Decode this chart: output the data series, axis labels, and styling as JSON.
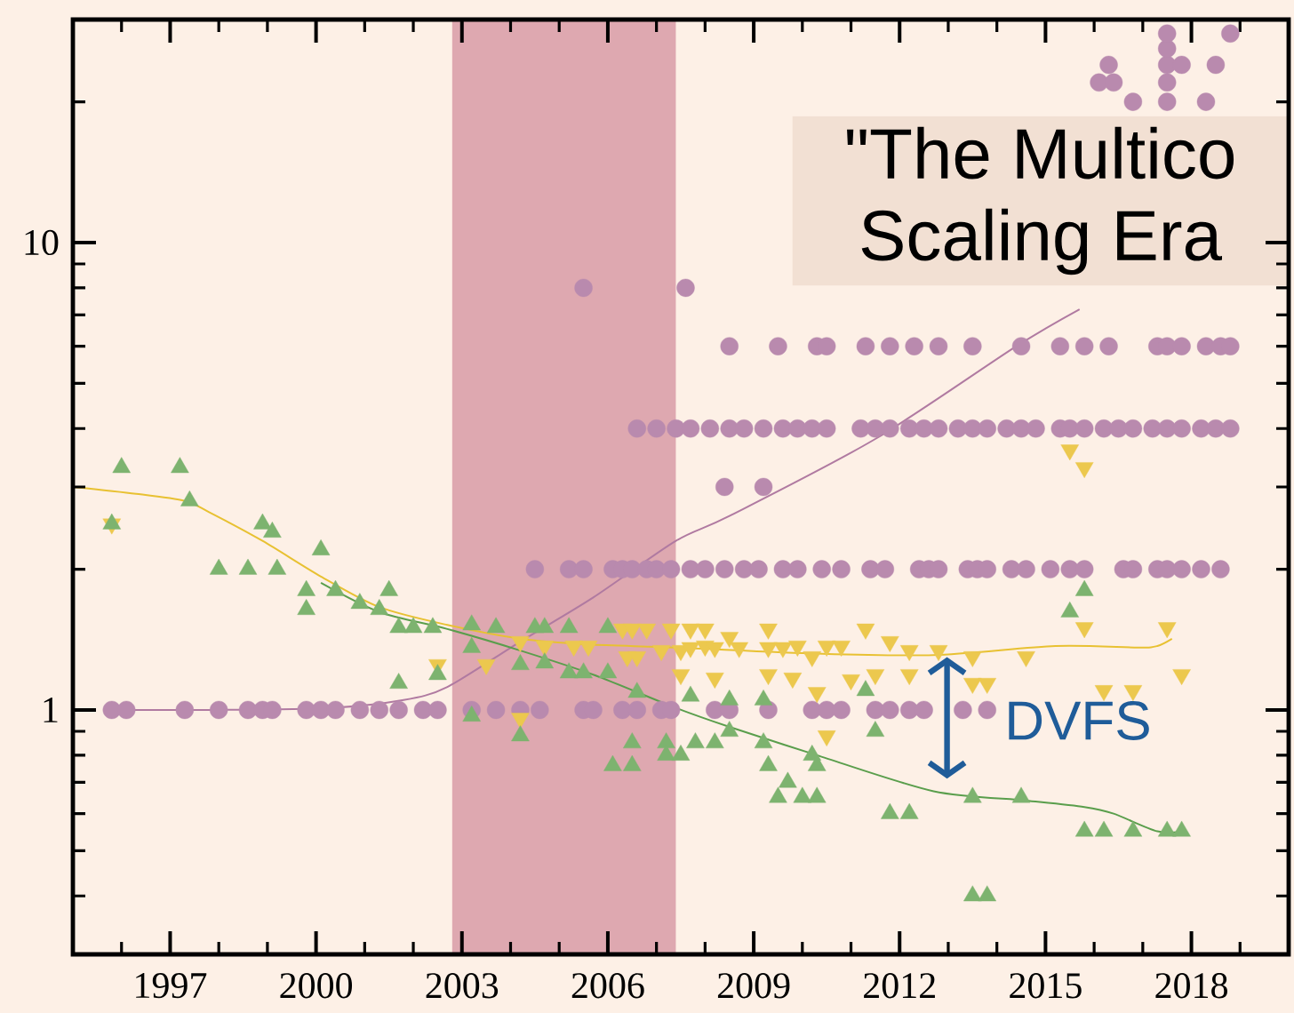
{
  "chart_data": {
    "type": "scatter",
    "log": "y",
    "xlim": [
      1995,
      2020
    ],
    "ylim": [
      0.3,
      30
    ],
    "xticks": [
      {
        "value": 1996,
        "label": null
      },
      1997,
      {
        "value": 1998,
        "label": null
      },
      {
        "value": 1999,
        "label": null
      },
      2000,
      {
        "value": 2001,
        "label": null
      },
      {
        "value": 2002,
        "label": null
      },
      2003,
      {
        "value": 2004,
        "label": null
      },
      {
        "value": 2005,
        "label": null
      },
      2006,
      {
        "value": 2007,
        "label": null
      },
      {
        "value": 2008,
        "label": null
      },
      2009,
      {
        "value": 2010,
        "label": null
      },
      {
        "value": 2011,
        "label": null
      },
      2012,
      {
        "value": 2013,
        "label": null
      },
      {
        "value": 2014,
        "label": null
      },
      2015,
      {
        "value": 2016,
        "label": null
      },
      {
        "value": 2017,
        "label": null
      },
      2018,
      {
        "value": 2019,
        "label": null
      }
    ],
    "yticks": [
      {
        "value": 0.4,
        "label": null
      },
      {
        "value": 0.5,
        "label": null
      },
      {
        "value": 0.6,
        "label": null
      },
      {
        "value": 0.7,
        "label": null
      },
      {
        "value": 0.8,
        "label": null
      },
      {
        "value": 0.9,
        "label": null
      },
      1,
      {
        "value": 2,
        "label": null
      },
      {
        "value": 3,
        "label": null
      },
      {
        "value": 4,
        "label": null
      },
      {
        "value": 5,
        "label": null
      },
      {
        "value": 6,
        "label": null
      },
      {
        "value": 7,
        "label": null
      },
      {
        "value": 8,
        "label": null
      },
      {
        "value": 9,
        "label": null
      },
      10,
      {
        "value": 20,
        "label": null
      }
    ],
    "bands": [
      {
        "axis": "x",
        "from": 2002.8,
        "to": 2007.4,
        "color": "#dea8b0"
      }
    ],
    "annotations": [
      "\"The Multico",
      "Scaling Era",
      "DVFS"
    ],
    "series": [
      {
        "marker": "circle",
        "color": "#b98aae",
        "x": [
          1995.8,
          1996.1,
          1997.3,
          1998.0,
          1998.6,
          1998.9,
          1999.1,
          1999.8,
          2000.1,
          2000.4,
          2000.9,
          2001.3,
          2001.7,
          2002.2,
          2002.5,
          2003.2,
          2003.7,
          2004.2,
          2004.6,
          2005.5,
          2005.7,
          2006.3,
          2006.6,
          2007.1,
          2007.3,
          2008.2,
          2008.5,
          2009.3,
          2010.2,
          2010.5,
          2010.8,
          2011.5,
          2011.8,
          2012.2,
          2012.5,
          2013.3,
          2013.8,
          2004.5,
          2005.2,
          2005.5,
          2006.1,
          2006.3,
          2006.5,
          2006.8,
          2007.0,
          2007.3,
          2007.7,
          2008.0,
          2008.4,
          2008.8,
          2009.1,
          2009.6,
          2009.9,
          2010.4,
          2010.8,
          2011.4,
          2011.7,
          2012.4,
          2012.6,
          2012.8,
          2013.4,
          2013.6,
          2013.8,
          2014.3,
          2014.6,
          2015.1,
          2015.5,
          2015.8,
          2016.6,
          2016.8,
          2017.3,
          2017.5,
          2017.8,
          2018.2,
          2018.6,
          2008.4,
          2009.2,
          2006.6,
          2007.0,
          2007.4,
          2007.7,
          2008.1,
          2008.5,
          2008.8,
          2009.2,
          2009.6,
          2009.9,
          2010.2,
          2010.5,
          2011.2,
          2011.5,
          2011.8,
          2012.2,
          2012.5,
          2012.8,
          2013.2,
          2013.5,
          2013.8,
          2014.2,
          2014.5,
          2014.8,
          2015.3,
          2015.5,
          2015.8,
          2016.2,
          2016.5,
          2016.8,
          2017.2,
          2017.5,
          2017.8,
          2018.2,
          2018.5,
          2018.8,
          2008.5,
          2009.5,
          2010.3,
          2010.5,
          2011.3,
          2011.8,
          2012.3,
          2012.8,
          2013.5,
          2014.5,
          2015.3,
          2015.8,
          2016.3,
          2017.3,
          2017.5,
          2017.8,
          2018.3,
          2018.6,
          2018.8,
          2005.5,
          2007.6,
          2016.8,
          2017.5,
          2018.3,
          2016.1,
          2016.4,
          2017.5,
          2016.3,
          2017.5,
          2017.8,
          2018.5,
          2017.5,
          2017.5,
          2018.8
        ],
        "values": [
          1,
          1,
          1,
          1,
          1,
          1,
          1,
          1,
          1,
          1,
          1,
          1,
          1,
          1,
          1,
          1,
          1,
          1,
          1,
          1,
          1,
          1,
          1,
          1,
          1,
          1,
          1,
          1,
          1,
          1,
          1,
          1,
          1,
          1,
          1,
          1,
          1,
          2,
          2,
          2,
          2,
          2,
          2,
          2,
          2,
          2,
          2,
          2,
          2,
          2,
          2,
          2,
          2,
          2,
          2,
          2,
          2,
          2,
          2,
          2,
          2,
          2,
          2,
          2,
          2,
          2,
          2,
          2,
          2,
          2,
          2,
          2,
          2,
          2,
          2,
          3,
          3,
          4,
          4,
          4,
          4,
          4,
          4,
          4,
          4,
          4,
          4,
          4,
          4,
          4,
          4,
          4,
          4,
          4,
          4,
          4,
          4,
          4,
          4,
          4,
          4,
          4,
          4,
          4,
          4,
          4,
          4,
          4,
          4,
          4,
          4,
          4,
          4,
          6,
          6,
          6,
          6,
          6,
          6,
          6,
          6,
          6,
          6,
          6,
          6,
          6,
          6,
          6,
          6,
          6,
          6,
          6,
          8,
          8,
          20,
          20,
          20,
          22,
          22,
          22,
          24,
          24,
          24,
          24,
          26,
          28,
          28
        ]
      },
      {
        "marker": "triangle-down",
        "color": "#ecc84e",
        "x": [
          1995.8,
          2002.5,
          2003.5,
          2004.2,
          2004.2,
          2004.7,
          2005.3,
          2005.6,
          2006.3,
          2006.5,
          2006.8,
          2007.3,
          2006.4,
          2006.6,
          2007.1,
          2007.7,
          2008.0,
          2007.5,
          2007.7,
          2008.0,
          2008.2,
          2008.5,
          2008.7,
          2009.3,
          2009.3,
          2009.6,
          2009.9,
          2010.2,
          2010.5,
          2010.8,
          2011.3,
          2007.5,
          2008.2,
          2009.3,
          2010.3,
          2010.5,
          2009.8,
          2011.0,
          2011.8,
          2012.2,
          2012.2,
          2012.8,
          2013.5,
          2013.5,
          2013.8,
          2014.6,
          2015.8,
          2017.5,
          2017.8,
          2016.2,
          2016.8,
          2011.5,
          2015.5,
          2015.8
        ],
        "values": [
          2.5,
          1.25,
          1.25,
          1.4,
          0.96,
          1.37,
          1.37,
          1.37,
          1.49,
          1.49,
          1.49,
          1.49,
          1.3,
          1.3,
          1.34,
          1.49,
          1.49,
          1.34,
          1.36,
          1.37,
          1.36,
          1.43,
          1.36,
          1.49,
          1.36,
          1.36,
          1.37,
          1.3,
          1.37,
          1.37,
          1.49,
          1.19,
          1.17,
          1.19,
          1.09,
          0.88,
          1.17,
          1.16,
          1.4,
          1.34,
          1.19,
          1.34,
          1.3,
          1.14,
          1.14,
          1.3,
          1.5,
          1.5,
          1.19,
          1.1,
          1.1,
          1.19,
          3.6,
          3.3
        ]
      },
      {
        "marker": "triangle",
        "color": "#7db36f",
        "x": [
          1995.8,
          1996.0,
          1997.2,
          1997.4,
          1998.0,
          1998.6,
          1998.9,
          1999.1,
          1999.2,
          2000.1,
          1999.8,
          1999.8,
          2000.4,
          2000.9,
          2001.5,
          2001.3,
          2001.7,
          2002.0,
          2002.4,
          2001.7,
          2002.5,
          2003.2,
          2003.7,
          2003.2,
          2004.5,
          2004.7,
          2004.2,
          2004.7,
          2005.2,
          2005.2,
          2005.5,
          2006.0,
          2006.0,
          2004.2,
          2003.2,
          2006.1,
          2006.5,
          2006.5,
          2007.2,
          2007.2,
          2006.6,
          2007.5,
          2007.8,
          2008.2,
          2007.7,
          2008.5,
          2009.2,
          2008.5,
          2009.2,
          2009.3,
          2010.2,
          2010.3,
          2009.5,
          2010.0,
          2010.3,
          2009.7,
          2011.3,
          2011.5,
          2012.2,
          2011.8,
          2013.5,
          2014.5,
          2015.8,
          2016.2,
          2016.8,
          2017.5,
          2017.8,
          2015.8,
          2015.5,
          2013.5,
          2013.8
        ],
        "values": [
          2.5,
          3.3,
          3.3,
          2.8,
          2.0,
          2.0,
          2.5,
          2.4,
          2.0,
          2.2,
          1.8,
          1.64,
          1.8,
          1.69,
          1.8,
          1.64,
          1.5,
          1.5,
          1.5,
          1.14,
          1.19,
          1.52,
          1.5,
          1.36,
          1.5,
          1.5,
          1.25,
          1.26,
          1.5,
          1.2,
          1.2,
          1.2,
          1.5,
          0.88,
          0.97,
          0.76,
          0.85,
          0.76,
          0.85,
          0.8,
          1.09,
          0.8,
          0.85,
          0.85,
          1.07,
          1.05,
          1.05,
          0.9,
          0.85,
          0.76,
          0.8,
          0.76,
          0.65,
          0.65,
          0.65,
          0.7,
          1.1,
          0.9,
          0.6,
          0.6,
          0.65,
          0.65,
          0.55,
          0.55,
          0.55,
          0.55,
          0.55,
          1.8,
          1.62,
          0.4,
          0.4
        ]
      },
      {
        "type": "line",
        "color": "#b07aa1",
        "x": [
          1995.8,
          1998.0,
          2000.3,
          2001.8,
          2002.7,
          2004.2,
          2005.7,
          2007.4,
          2008.5,
          2011.5,
          2014.4,
          2015.7
        ],
        "values": [
          1.0,
          1.0,
          1.01,
          1.05,
          1.12,
          1.4,
          1.74,
          2.3,
          2.6,
          3.8,
          6.0,
          7.2
        ]
      },
      {
        "type": "line",
        "color": "#5a9e4c",
        "x": [
          2000.1,
          2001.3,
          2002.7,
          2004.2,
          2005.7,
          2007.4,
          2008.5,
          2010.3,
          2012.7,
          2014.6,
          2015.8,
          2016.4,
          2017.3,
          2017.9
        ],
        "values": [
          1.87,
          1.62,
          1.49,
          1.34,
          1.19,
          1.01,
          0.92,
          0.8,
          0.67,
          0.64,
          0.62,
          0.6,
          0.55,
          0.55
        ]
      },
      {
        "type": "line",
        "color": "#e8c132",
        "x": [
          1995.0,
          1996.3,
          1997.3,
          1997.8,
          1998.9,
          2000.1,
          2001.3,
          2002.7,
          2004.2,
          2005.6,
          2007.4,
          2010.3,
          2012.7,
          2015.2,
          2016.9,
          2017.3,
          2017.6
        ],
        "values": [
          3.0,
          2.9,
          2.8,
          2.65,
          2.3,
          1.93,
          1.66,
          1.52,
          1.42,
          1.38,
          1.36,
          1.32,
          1.31,
          1.37,
          1.36,
          1.37,
          1.42
        ]
      }
    ]
  }
}
